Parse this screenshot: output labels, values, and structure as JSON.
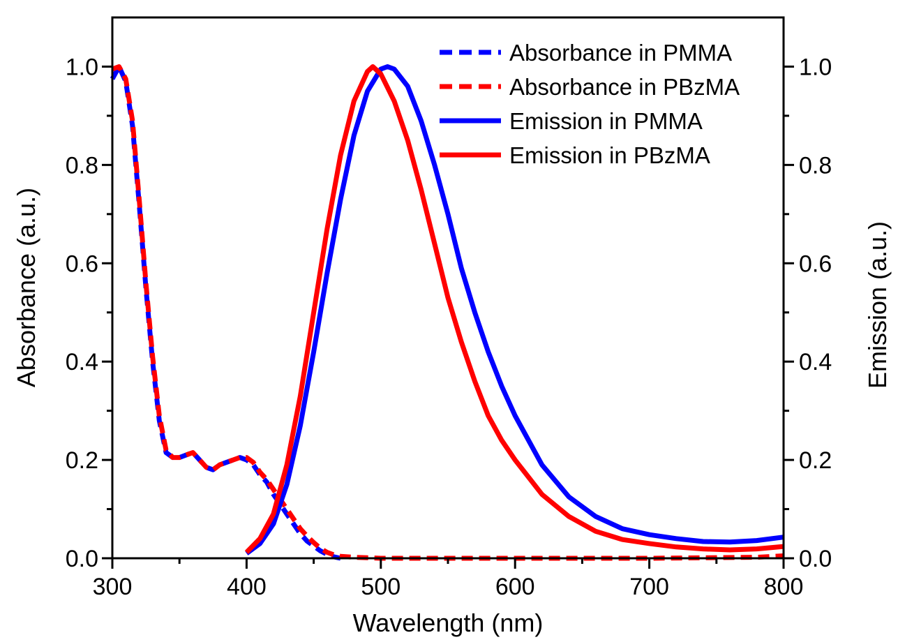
{
  "chart_data": {
    "type": "line",
    "xlabel": "Wavelength (nm)",
    "ylabel": "Absorbance (a.u.)",
    "y2label": "Emission (a.u.)",
    "xlim": [
      300,
      800
    ],
    "ylim": [
      0,
      1.1
    ],
    "y2lim": [
      0,
      1.1
    ],
    "xticks": [
      "300",
      "400",
      "500",
      "600",
      "700",
      "800"
    ],
    "yticks": [
      "0.0",
      "0.2",
      "0.4",
      "0.6",
      "0.8",
      "1.0"
    ],
    "y2ticks": [
      "0.0",
      "0.2",
      "0.4",
      "0.6",
      "0.8",
      "1.0"
    ],
    "grid": false,
    "legend_position": "top-right",
    "series": [
      {
        "name": "Absorbance in PMMA",
        "axis": "left",
        "style": "dashed",
        "color": "#0000ff",
        "x": [
          300,
          305,
          310,
          315,
          320,
          325,
          330,
          335,
          340,
          345,
          350,
          355,
          360,
          365,
          370,
          375,
          380,
          385,
          390,
          395,
          400,
          405,
          410,
          415,
          420,
          425,
          430,
          435,
          440,
          445,
          450,
          455,
          460,
          465,
          470
        ],
        "y": [
          0.975,
          1.0,
          0.97,
          0.88,
          0.72,
          0.55,
          0.4,
          0.28,
          0.215,
          0.205,
          0.205,
          0.21,
          0.215,
          0.2,
          0.185,
          0.18,
          0.19,
          0.195,
          0.2,
          0.205,
          0.2,
          0.19,
          0.17,
          0.155,
          0.13,
          0.11,
          0.09,
          0.07,
          0.05,
          0.035,
          0.025,
          0.015,
          0.008,
          0.003,
          0.0
        ]
      },
      {
        "name": "Absorbance in PBzMA",
        "axis": "left",
        "style": "dashed",
        "color": "#ff0000",
        "x": [
          300,
          305,
          310,
          315,
          320,
          325,
          330,
          335,
          340,
          345,
          350,
          355,
          360,
          365,
          370,
          375,
          380,
          385,
          390,
          395,
          400,
          405,
          410,
          415,
          420,
          425,
          430,
          435,
          440,
          445,
          450,
          455,
          460,
          465,
          470,
          480,
          490,
          500,
          600,
          700,
          780,
          800
        ],
        "y": [
          0.995,
          1.0,
          0.975,
          0.89,
          0.73,
          0.56,
          0.41,
          0.29,
          0.22,
          0.205,
          0.205,
          0.21,
          0.215,
          0.2,
          0.185,
          0.18,
          0.19,
          0.195,
          0.2,
          0.205,
          0.205,
          0.195,
          0.175,
          0.16,
          0.14,
          0.12,
          0.1,
          0.08,
          0.06,
          0.045,
          0.032,
          0.02,
          0.012,
          0.007,
          0.004,
          0.002,
          0.001,
          0.0,
          0.0,
          0.0,
          0.002,
          0.005
        ]
      },
      {
        "name": "Emission in PMMA",
        "axis": "right",
        "style": "solid",
        "color": "#0000ff",
        "x": [
          400,
          410,
          420,
          430,
          440,
          450,
          460,
          470,
          480,
          490,
          500,
          505,
          510,
          520,
          530,
          540,
          550,
          560,
          570,
          580,
          590,
          600,
          620,
          640,
          660,
          680,
          700,
          720,
          740,
          760,
          780,
          800
        ],
        "y": [
          0.01,
          0.03,
          0.07,
          0.15,
          0.27,
          0.42,
          0.58,
          0.73,
          0.86,
          0.95,
          0.995,
          1.0,
          0.995,
          0.96,
          0.89,
          0.8,
          0.7,
          0.59,
          0.5,
          0.42,
          0.35,
          0.29,
          0.19,
          0.125,
          0.085,
          0.06,
          0.048,
          0.04,
          0.034,
          0.033,
          0.036,
          0.043
        ]
      },
      {
        "name": "Emission in PBzMA",
        "axis": "right",
        "style": "solid",
        "color": "#ff0000",
        "x": [
          400,
          410,
          420,
          430,
          440,
          450,
          460,
          470,
          480,
          490,
          494,
          500,
          510,
          520,
          530,
          540,
          550,
          560,
          570,
          580,
          590,
          600,
          620,
          640,
          660,
          680,
          700,
          720,
          740,
          760,
          780,
          800
        ],
        "y": [
          0.012,
          0.04,
          0.09,
          0.19,
          0.33,
          0.5,
          0.67,
          0.82,
          0.93,
          0.99,
          1.0,
          0.985,
          0.93,
          0.85,
          0.75,
          0.64,
          0.53,
          0.44,
          0.36,
          0.29,
          0.24,
          0.2,
          0.13,
          0.085,
          0.055,
          0.038,
          0.03,
          0.023,
          0.019,
          0.017,
          0.019,
          0.024
        ]
      }
    ]
  }
}
